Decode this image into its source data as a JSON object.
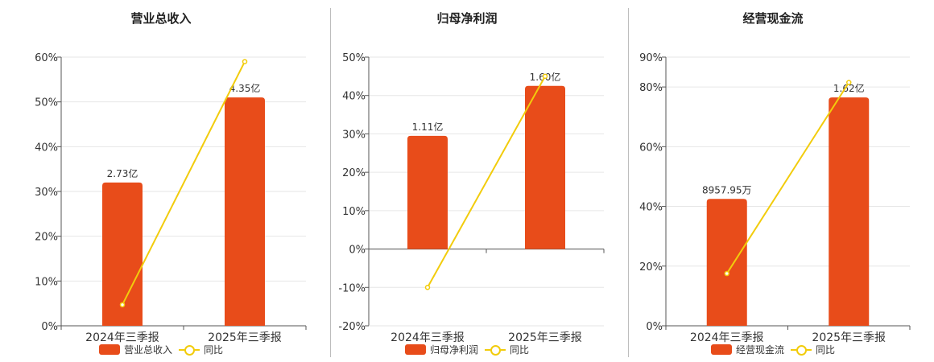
{
  "colors": {
    "bar": "#e84c1a",
    "line": "#f2cc0c",
    "grid": "#e6e6e6",
    "axis": "#555555"
  },
  "chart_data": [
    {
      "type": "bar",
      "title": "营业总收入",
      "categories": [
        "2024年三季报",
        "2025年三季报"
      ],
      "yticks": [
        "0%",
        "10%",
        "20%",
        "30%",
        "40%",
        "50%",
        "60%"
      ],
      "ylim": [
        0,
        60
      ],
      "series": [
        {
          "name": "营业总收入",
          "type": "bar",
          "values": [
            32,
            51
          ],
          "labels": [
            "2.73亿",
            "4.35亿"
          ]
        },
        {
          "name": "同比",
          "type": "line",
          "values": [
            4.7,
            59
          ]
        }
      ],
      "legend": "bottom"
    },
    {
      "type": "bar",
      "title": "归母净利润",
      "categories": [
        "2024年三季报",
        "2025年三季报"
      ],
      "yticks": [
        "-20%",
        "-10%",
        "0%",
        "10%",
        "20%",
        "30%",
        "40%",
        "50%"
      ],
      "ylim": [
        -20,
        50
      ],
      "series": [
        {
          "name": "归母净利润",
          "type": "bar",
          "values": [
            29.5,
            42.5
          ],
          "labels": [
            "1.11亿",
            "1.60亿"
          ]
        },
        {
          "name": "同比",
          "type": "line",
          "values": [
            -10,
            45
          ]
        }
      ],
      "legend": "bottom"
    },
    {
      "type": "bar",
      "title": "经营现金流",
      "categories": [
        "2024年三季报",
        "2025年三季报"
      ],
      "yticks": [
        "0%",
        "20%",
        "40%",
        "60%",
        "80%",
        "90%"
      ],
      "ytick_values": [
        0,
        20,
        40,
        60,
        80,
        90
      ],
      "ylim": [
        0,
        90
      ],
      "series": [
        {
          "name": "经营现金流",
          "type": "bar",
          "values": [
            42.5,
            76.5
          ],
          "labels": [
            "8957.95万",
            "1.62亿"
          ]
        },
        {
          "name": "同比",
          "type": "line",
          "values": [
            17.5,
            81.5
          ]
        }
      ],
      "legend": "bottom"
    }
  ]
}
